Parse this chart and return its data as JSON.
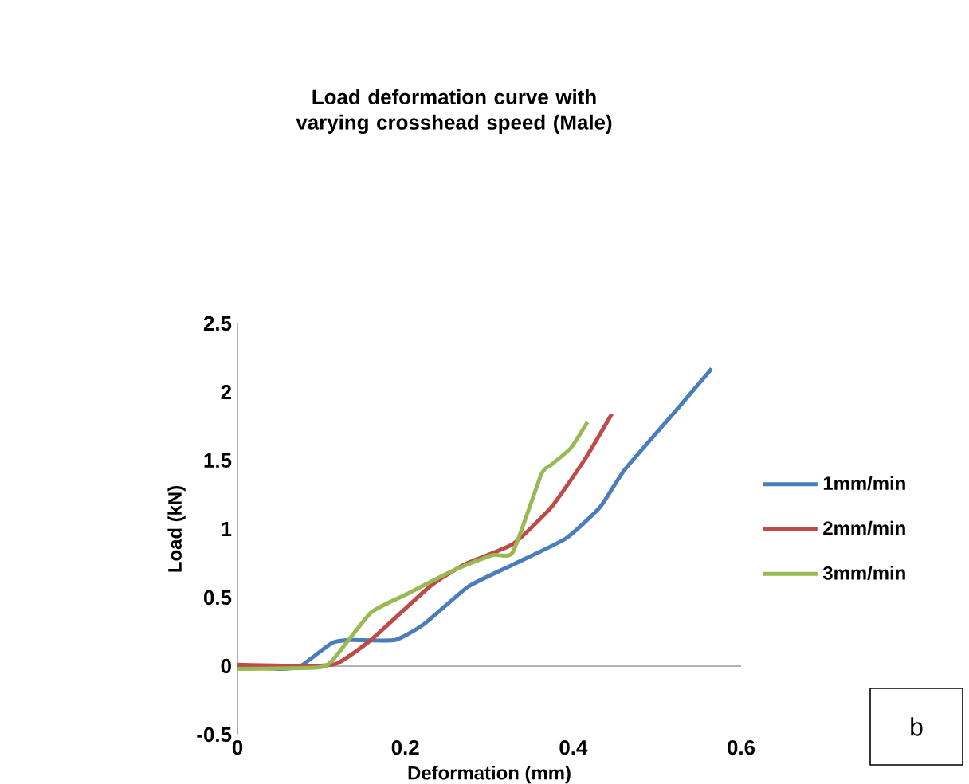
{
  "chart_data": {
    "type": "line",
    "title": "Load deformation curve with varying crosshead speed (Male)",
    "xlabel": "Deformation (mm)",
    "ylabel": "Load (kN)",
    "xlim": [
      0,
      0.6
    ],
    "ylim": [
      -0.5,
      2.5
    ],
    "xticks": [
      0,
      0.2,
      0.4,
      0.6
    ],
    "yticks": [
      -0.5,
      0,
      0.5,
      1,
      1.5,
      2,
      2.5
    ],
    "legend": "right",
    "annotations": [
      "b"
    ],
    "series": [
      {
        "name": "1mm/min",
        "color": "#4a7ebb",
        "x": [
          0,
          0.05,
          0.075,
          0.113,
          0.136,
          0.188,
          0.223,
          0.275,
          0.328,
          0.391,
          0.432,
          0.461,
          0.519,
          0.565
        ],
        "values": [
          0,
          -0.02,
          0,
          0.17,
          0.19,
          0.19,
          0.31,
          0.58,
          0.74,
          0.93,
          1.16,
          1.43,
          1.84,
          2.17
        ]
      },
      {
        "name": "2mm/min",
        "color": "#be4b48",
        "x": [
          0,
          0.084,
          0.119,
          0.159,
          0.229,
          0.27,
          0.328,
          0.374,
          0.414,
          0.446
        ],
        "values": [
          0.01,
          0,
          0.02,
          0.19,
          0.58,
          0.74,
          0.89,
          1.16,
          1.51,
          1.84
        ]
      },
      {
        "name": "3mm/min",
        "color": "#98b954",
        "x": [
          0,
          0.096,
          0.113,
          0.159,
          0.2,
          0.258,
          0.304,
          0.328,
          0.362,
          0.374,
          0.397,
          0.417
        ],
        "values": [
          -0.02,
          -0.01,
          0.04,
          0.39,
          0.52,
          0.7,
          0.81,
          0.83,
          1.4,
          1.47,
          1.59,
          1.78
        ]
      }
    ]
  }
}
